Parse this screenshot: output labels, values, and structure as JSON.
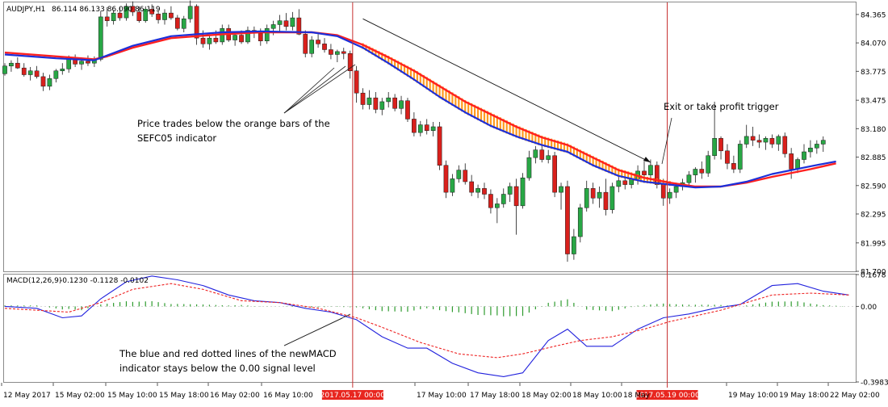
{
  "symbol_header": {
    "symbol": "AUDJPY,H1",
    "ohlc": "86.114 86.133 86.090 86.119"
  },
  "macd_header": {
    "label": "MACD(12,26,9)",
    "values": "-0.1230 -0.1128 -0.0102"
  },
  "annotations": {
    "price_note_line1": "Price trades below the orange bars of the",
    "price_note_line2": "SEFC05 indicator",
    "exit_note": "Exit or take profit trigger",
    "macd_note_line1": "The blue and red dotted lines of the newMACD",
    "macd_note_line2": "indicator stays below the 0.00 signal level"
  },
  "vlines": {
    "entry": "2017.05.17 00:00",
    "exit": "2017.05.19 00:00"
  },
  "colors": {
    "bull": "#28a745",
    "bear": "#d9201c",
    "ma_red": "#ff2020",
    "ma_blue": "#1c2fd9",
    "band_orange": "#ff9a1e",
    "macd_blue": "#2222dd",
    "signal_red": "#ee2222",
    "histogram": "#2e9b2e",
    "vline": "#c83232",
    "trend": "#111111",
    "date_bg": "#e8261f"
  },
  "chart_data": [
    {
      "type": "candlestick",
      "title": "AUDJPY,H1",
      "ylim": [
        81.7,
        84.49
      ],
      "y_ticks": [
        "84.365",
        "84.070",
        "83.775",
        "83.475",
        "83.180",
        "82.885",
        "82.590",
        "82.295",
        "81.995",
        "81.700"
      ],
      "x_ticks": [
        "12 May 2017",
        "15 May 02:00",
        "15 May 10:00",
        "15 May 18:00",
        "16 May 02:00",
        "16 May 10:00",
        "2017.05.17 00:00",
        "17 May 10:00",
        "17 May 18:00",
        "18 May 02:00",
        "18 May 10:00",
        "18 May",
        "2017.05.19 00:00",
        "19 May 10:00",
        "19 May 18:00",
        "22 May 02:00"
      ],
      "candles": [
        [
          83.75,
          83.86,
          83.73,
          83.83
        ],
        [
          83.83,
          83.89,
          83.77,
          83.86
        ],
        [
          83.86,
          83.92,
          83.8,
          83.81
        ],
        [
          83.81,
          83.86,
          83.72,
          83.74
        ],
        [
          83.74,
          83.82,
          83.68,
          83.78
        ],
        [
          83.78,
          83.83,
          83.7,
          83.72
        ],
        [
          83.72,
          83.76,
          83.57,
          83.62
        ],
        [
          83.62,
          83.74,
          83.58,
          83.7
        ],
        [
          83.7,
          83.8,
          83.66,
          83.78
        ],
        [
          83.78,
          83.86,
          83.74,
          83.8
        ],
        [
          83.8,
          83.94,
          83.76,
          83.9
        ],
        [
          83.9,
          83.95,
          83.82,
          83.85
        ],
        [
          83.85,
          83.92,
          83.79,
          83.88
        ],
        [
          83.88,
          83.94,
          83.83,
          83.86
        ],
        [
          83.86,
          83.93,
          83.82,
          83.9
        ],
        [
          83.9,
          84.4,
          83.88,
          84.34
        ],
        [
          84.34,
          84.44,
          84.24,
          84.3
        ],
        [
          84.3,
          84.41,
          84.26,
          84.38
        ],
        [
          84.38,
          84.44,
          84.3,
          84.33
        ],
        [
          84.33,
          84.48,
          84.3,
          84.45
        ],
        [
          84.45,
          84.5,
          84.35,
          84.39
        ],
        [
          84.39,
          84.45,
          84.28,
          84.3
        ],
        [
          84.3,
          84.45,
          84.28,
          84.42
        ],
        [
          84.42,
          84.47,
          84.34,
          84.37
        ],
        [
          84.37,
          84.4,
          84.27,
          84.31
        ],
        [
          84.31,
          84.42,
          84.26,
          84.38
        ],
        [
          84.38,
          84.45,
          84.31,
          84.33
        ],
        [
          84.33,
          84.36,
          84.2,
          84.22
        ],
        [
          84.22,
          84.35,
          84.18,
          84.32
        ],
        [
          84.32,
          84.51,
          84.28,
          84.45
        ],
        [
          84.45,
          84.47,
          84.05,
          84.12
        ],
        [
          84.12,
          84.2,
          84.02,
          84.06
        ],
        [
          84.06,
          84.16,
          84.0,
          84.12
        ],
        [
          84.12,
          84.2,
          84.06,
          84.08
        ],
        [
          84.08,
          84.26,
          84.05,
          84.22
        ],
        [
          84.22,
          84.26,
          84.08,
          84.1
        ],
        [
          84.1,
          84.18,
          84.04,
          84.15
        ],
        [
          84.15,
          84.2,
          84.06,
          84.08
        ],
        [
          84.08,
          84.24,
          84.06,
          84.2
        ],
        [
          84.2,
          84.24,
          84.12,
          84.17
        ],
        [
          84.17,
          84.22,
          84.04,
          84.09
        ],
        [
          84.09,
          84.26,
          84.06,
          84.22
        ],
        [
          84.22,
          84.3,
          84.15,
          84.26
        ],
        [
          84.26,
          84.36,
          84.18,
          84.3
        ],
        [
          84.3,
          84.38,
          84.2,
          84.24
        ],
        [
          84.24,
          84.39,
          84.2,
          84.33
        ],
        [
          84.33,
          84.42,
          84.15,
          84.16
        ],
        [
          84.16,
          84.2,
          83.92,
          83.96
        ],
        [
          83.96,
          84.14,
          83.92,
          84.1
        ],
        [
          84.1,
          84.16,
          84.02,
          84.06
        ],
        [
          84.06,
          84.12,
          83.97,
          84.0
        ],
        [
          84.0,
          84.06,
          83.9,
          83.95
        ],
        [
          83.95,
          84.0,
          83.87,
          83.98
        ],
        [
          83.98,
          84.02,
          83.9,
          83.96
        ],
        [
          83.96,
          83.99,
          83.7,
          83.78
        ],
        [
          83.78,
          83.83,
          83.45,
          83.55
        ],
        [
          83.55,
          83.6,
          83.38,
          83.43
        ],
        [
          83.43,
          83.58,
          83.38,
          83.5
        ],
        [
          83.5,
          83.56,
          83.34,
          83.38
        ],
        [
          83.38,
          83.5,
          83.32,
          83.46
        ],
        [
          83.46,
          83.56,
          83.4,
          83.5
        ],
        [
          83.5,
          83.54,
          83.36,
          83.39
        ],
        [
          83.39,
          83.52,
          83.33,
          83.47
        ],
        [
          83.47,
          83.5,
          83.25,
          83.28
        ],
        [
          83.28,
          83.35,
          83.1,
          83.14
        ],
        [
          83.14,
          83.26,
          83.1,
          83.22
        ],
        [
          83.22,
          83.28,
          83.12,
          83.16
        ],
        [
          83.16,
          83.25,
          83.1,
          83.2
        ],
        [
          83.2,
          83.25,
          82.75,
          82.8
        ],
        [
          82.8,
          82.85,
          82.46,
          82.52
        ],
        [
          82.52,
          82.71,
          82.48,
          82.66
        ],
        [
          82.66,
          82.8,
          82.62,
          82.75
        ],
        [
          82.75,
          82.82,
          82.6,
          82.63
        ],
        [
          82.63,
          82.7,
          82.48,
          82.52
        ],
        [
          82.52,
          82.6,
          82.46,
          82.56
        ],
        [
          82.56,
          82.62,
          82.45,
          82.5
        ],
        [
          82.5,
          82.55,
          82.3,
          82.36
        ],
        [
          82.36,
          82.46,
          82.2,
          82.4
        ],
        [
          82.4,
          82.56,
          82.36,
          82.5
        ],
        [
          82.5,
          82.62,
          82.42,
          82.58
        ],
        [
          82.58,
          82.66,
          82.08,
          82.38
        ],
        [
          82.38,
          82.72,
          82.35,
          82.67
        ],
        [
          82.67,
          82.95,
          82.64,
          82.88
        ],
        [
          82.88,
          83.0,
          82.82,
          82.96
        ],
        [
          82.96,
          83.02,
          82.83,
          82.86
        ],
        [
          82.86,
          82.96,
          82.82,
          82.9
        ],
        [
          82.9,
          82.94,
          82.47,
          82.52
        ],
        [
          82.52,
          82.62,
          82.34,
          82.58
        ],
        [
          82.58,
          82.64,
          81.8,
          81.88
        ],
        [
          81.88,
          82.14,
          81.82,
          82.06
        ],
        [
          82.06,
          82.4,
          82.0,
          82.36
        ],
        [
          82.36,
          82.64,
          82.32,
          82.56
        ],
        [
          82.56,
          82.62,
          82.4,
          82.46
        ],
        [
          82.46,
          82.58,
          82.36,
          82.52
        ],
        [
          82.52,
          82.66,
          82.28,
          82.34
        ],
        [
          82.34,
          82.62,
          82.3,
          82.58
        ],
        [
          82.58,
          82.68,
          82.52,
          82.64
        ],
        [
          82.64,
          82.7,
          82.55,
          82.6
        ],
        [
          82.6,
          82.7,
          82.56,
          82.66
        ],
        [
          82.66,
          82.8,
          82.6,
          82.74
        ],
        [
          82.74,
          82.84,
          82.66,
          82.7
        ],
        [
          82.7,
          82.86,
          82.66,
          82.8
        ],
        [
          82.8,
          82.84,
          82.56,
          82.6
        ],
        [
          82.6,
          82.66,
          82.38,
          82.46
        ],
        [
          82.46,
          82.56,
          82.4,
          82.52
        ],
        [
          82.52,
          82.62,
          82.46,
          82.58
        ],
        [
          82.58,
          82.66,
          82.54,
          82.62
        ],
        [
          82.62,
          82.74,
          82.58,
          82.7
        ],
        [
          82.7,
          82.78,
          82.62,
          82.76
        ],
        [
          82.76,
          82.84,
          82.66,
          82.72
        ],
        [
          82.72,
          82.95,
          82.68,
          82.9
        ],
        [
          82.9,
          83.46,
          82.86,
          83.08
        ],
        [
          83.08,
          83.1,
          82.86,
          82.95
        ],
        [
          82.95,
          83.02,
          82.76,
          82.82
        ],
        [
          82.82,
          82.9,
          82.72,
          82.76
        ],
        [
          82.76,
          83.06,
          82.72,
          83.02
        ],
        [
          83.02,
          83.22,
          82.98,
          83.1
        ],
        [
          83.1,
          83.2,
          83.0,
          83.06
        ],
        [
          83.06,
          83.12,
          82.98,
          83.04
        ],
        [
          83.04,
          83.1,
          82.96,
          83.08
        ],
        [
          83.08,
          83.12,
          82.98,
          83.02
        ],
        [
          83.02,
          83.12,
          82.95,
          83.1
        ],
        [
          83.1,
          83.14,
          82.88,
          82.92
        ],
        [
          82.92,
          82.98,
          82.66,
          82.76
        ],
        [
          82.76,
          82.88,
          82.72,
          82.86
        ],
        [
          82.86,
          83.02,
          82.82,
          82.94
        ],
        [
          82.94,
          83.06,
          82.88,
          82.98
        ],
        [
          82.98,
          83.06,
          82.92,
          83.02
        ],
        [
          83.02,
          83.1,
          82.94,
          83.06
        ]
      ],
      "ma_red": [
        [
          0,
          83.97
        ],
        [
          8,
          83.93
        ],
        [
          14,
          83.9
        ],
        [
          16,
          83.93
        ],
        [
          20,
          84.02
        ],
        [
          26,
          84.12
        ],
        [
          34,
          84.16
        ],
        [
          40,
          84.18
        ],
        [
          48,
          84.18
        ],
        [
          52,
          84.15
        ],
        [
          56,
          84.05
        ],
        [
          60,
          83.92
        ],
        [
          64,
          83.78
        ],
        [
          68,
          83.62
        ],
        [
          72,
          83.46
        ],
        [
          76,
          83.33
        ],
        [
          80,
          83.2
        ],
        [
          84,
          83.09
        ],
        [
          88,
          83.01
        ],
        [
          92,
          82.88
        ],
        [
          96,
          82.75
        ],
        [
          100,
          82.67
        ],
        [
          104,
          82.62
        ],
        [
          108,
          82.58
        ],
        [
          112,
          82.58
        ],
        [
          116,
          82.62
        ],
        [
          120,
          82.68
        ],
        [
          126,
          82.76
        ],
        [
          130,
          82.82
        ]
      ],
      "ma_blue": [
        [
          0,
          83.95
        ],
        [
          8,
          83.91
        ],
        [
          14,
          83.89
        ],
        [
          16,
          83.94
        ],
        [
          20,
          84.04
        ],
        [
          26,
          84.14
        ],
        [
          34,
          84.18
        ],
        [
          40,
          84.19
        ],
        [
          48,
          84.18
        ],
        [
          52,
          84.14
        ],
        [
          56,
          84.02
        ],
        [
          60,
          83.86
        ],
        [
          64,
          83.69
        ],
        [
          68,
          83.51
        ],
        [
          72,
          83.35
        ],
        [
          76,
          83.21
        ],
        [
          80,
          83.1
        ],
        [
          84,
          83.01
        ],
        [
          88,
          82.94
        ],
        [
          92,
          82.8
        ],
        [
          96,
          82.69
        ],
        [
          100,
          82.63
        ],
        [
          104,
          82.6
        ],
        [
          108,
          82.57
        ],
        [
          112,
          82.58
        ],
        [
          116,
          82.63
        ],
        [
          120,
          82.71
        ],
        [
          126,
          82.79
        ],
        [
          130,
          82.84
        ]
      ],
      "trendline": [
        [
          56,
          84.32
        ],
        [
          101,
          82.83
        ]
      ]
    },
    {
      "type": "macd",
      "title": "MACD(12,26,9)",
      "ylim": [
        -0.3983,
        0.1678
      ],
      "y_ticks": [
        "0.1678",
        "0.00",
        "-0.3983"
      ],
      "macd": [
        [
          0,
          0.0
        ],
        [
          5,
          -0.01
        ],
        [
          9,
          -0.06
        ],
        [
          12,
          -0.05
        ],
        [
          15,
          0.04
        ],
        [
          19,
          0.13
        ],
        [
          23,
          0.16
        ],
        [
          27,
          0.14
        ],
        [
          31,
          0.11
        ],
        [
          35,
          0.06
        ],
        [
          39,
          0.03
        ],
        [
          43,
          0.02
        ],
        [
          47,
          -0.01
        ],
        [
          51,
          -0.03
        ],
        [
          55,
          -0.07
        ],
        [
          59,
          -0.16
        ],
        [
          63,
          -0.22
        ],
        [
          66,
          -0.22
        ],
        [
          70,
          -0.3
        ],
        [
          74,
          -0.35
        ],
        [
          78,
          -0.37
        ],
        [
          81,
          -0.35
        ],
        [
          85,
          -0.18
        ],
        [
          88,
          -0.12
        ],
        [
          91,
          -0.21
        ],
        [
          95,
          -0.21
        ],
        [
          99,
          -0.12
        ],
        [
          103,
          -0.06
        ],
        [
          107,
          -0.04
        ],
        [
          111,
          -0.01
        ],
        [
          115,
          0.01
        ],
        [
          120,
          0.11
        ],
        [
          124,
          0.12
        ],
        [
          128,
          0.08
        ],
        [
          132,
          0.06
        ]
      ],
      "signal": [
        [
          0,
          -0.01
        ],
        [
          10,
          -0.03
        ],
        [
          15,
          0.02
        ],
        [
          20,
          0.09
        ],
        [
          26,
          0.12
        ],
        [
          31,
          0.09
        ],
        [
          37,
          0.03
        ],
        [
          43,
          0.02
        ],
        [
          49,
          -0.01
        ],
        [
          55,
          -0.06
        ],
        [
          59,
          -0.11
        ],
        [
          65,
          -0.19
        ],
        [
          71,
          -0.25
        ],
        [
          77,
          -0.27
        ],
        [
          81,
          -0.25
        ],
        [
          86,
          -0.21
        ],
        [
          90,
          -0.18
        ],
        [
          95,
          -0.16
        ],
        [
          100,
          -0.12
        ],
        [
          104,
          -0.08
        ],
        [
          108,
          -0.05
        ],
        [
          112,
          -0.02
        ],
        [
          116,
          0.02
        ],
        [
          120,
          0.06
        ],
        [
          126,
          0.07
        ],
        [
          132,
          0.06
        ]
      ]
    }
  ]
}
